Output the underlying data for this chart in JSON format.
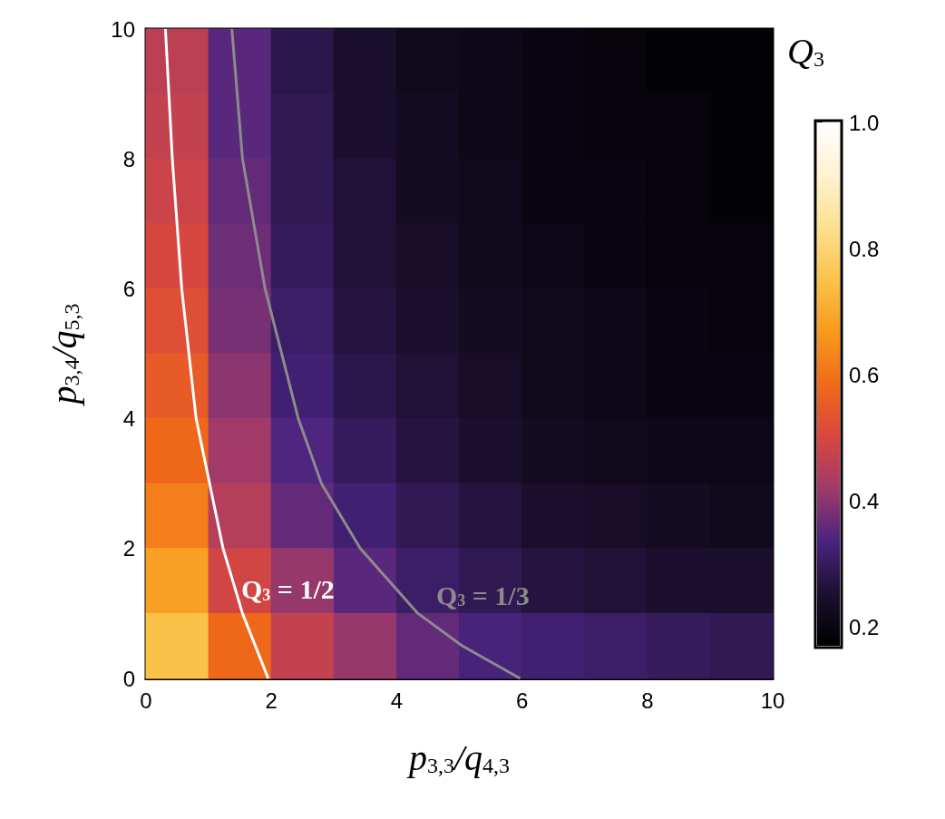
{
  "chart_data": {
    "type": "heatmap",
    "xlabel": "p$_{3,3}$/q$_{4,3}$",
    "ylabel": "p$_{3,4}$/q$_{5,3}$",
    "clabel": "Q$_{3}$",
    "xlim": [
      0,
      10
    ],
    "ylim": [
      0,
      10
    ],
    "xticks": [
      0,
      2,
      4,
      6,
      8,
      10
    ],
    "yticks": [
      0,
      2,
      4,
      6,
      8,
      10
    ],
    "clim": [
      0.17,
      1.0
    ],
    "cticks": [
      0.2,
      0.4,
      0.6,
      0.8,
      {
        "value": 1,
        "label": "1.0"
      }
    ],
    "cells": [
      [
        0.46,
        0.35,
        0.28,
        0.25,
        0.22,
        0.21,
        0.2,
        0.19,
        0.18,
        0.18
      ],
      [
        0.47,
        0.35,
        0.29,
        0.25,
        0.23,
        0.21,
        0.2,
        0.19,
        0.19,
        0.18
      ],
      [
        0.48,
        0.36,
        0.29,
        0.26,
        0.23,
        0.22,
        0.2,
        0.2,
        0.19,
        0.18
      ],
      [
        0.5,
        0.37,
        0.3,
        0.26,
        0.24,
        0.22,
        0.21,
        0.2,
        0.19,
        0.19
      ],
      [
        0.52,
        0.38,
        0.31,
        0.27,
        0.25,
        0.23,
        0.22,
        0.21,
        0.2,
        0.19
      ],
      [
        0.55,
        0.4,
        0.32,
        0.28,
        0.26,
        0.24,
        0.22,
        0.21,
        0.2,
        0.2
      ],
      [
        0.58,
        0.42,
        0.34,
        0.3,
        0.27,
        0.25,
        0.23,
        0.22,
        0.21,
        0.21
      ],
      [
        0.62,
        0.45,
        0.36,
        0.32,
        0.29,
        0.27,
        0.25,
        0.24,
        0.23,
        0.22
      ],
      [
        0.68,
        0.49,
        0.41,
        0.35,
        0.31,
        0.29,
        0.27,
        0.26,
        0.25,
        0.25
      ],
      [
        0.75,
        0.58,
        0.47,
        0.41,
        0.36,
        0.33,
        0.32,
        0.31,
        0.3,
        0.29
      ]
    ],
    "series": [
      {
        "type": "line",
        "color": "#ffffff",
        "x": [
          1.95,
          1.54,
          1.23,
          0.8,
          0.57,
          0.42,
          0.31
        ],
        "values": [
          0,
          1,
          2,
          4,
          6,
          8,
          10
        ]
      },
      {
        "type": "line",
        "color": "#8c8c8c",
        "x": [
          5.97,
          5.05,
          4.34,
          3.42,
          2.8,
          2.43,
          1.9,
          1.54,
          1.37
        ],
        "values": [
          0,
          0.5,
          1,
          2,
          3,
          4,
          6,
          8,
          10
        ]
      }
    ],
    "annotations": [
      "Q$_{3}$ = 1/2",
      "Q$_{3}$ = 1/3"
    ]
  }
}
